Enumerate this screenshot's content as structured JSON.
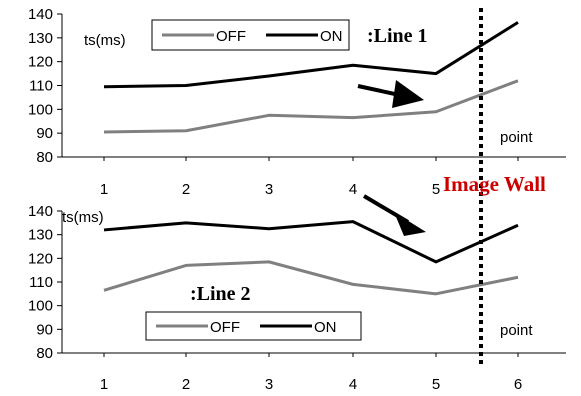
{
  "chart_data": [
    {
      "type": "line",
      "panel": "top",
      "label": ":Line 1",
      "ylabel": "ts(ms)",
      "xlabel": "point",
      "x": [
        1,
        2,
        3,
        4,
        5,
        6
      ],
      "x_tick_labels": [
        "1",
        "2",
        "3",
        "4",
        "5",
        ""
      ],
      "ylim": [
        80,
        140
      ],
      "y_ticks": [
        80,
        90,
        100,
        110,
        120,
        130,
        140
      ],
      "legend_placement": "top-center",
      "series": [
        {
          "name": "OFF",
          "color": "#808080",
          "values": [
            90.5,
            91,
            97.5,
            96.5,
            99,
            112
          ]
        },
        {
          "name": "ON",
          "color": "#000000",
          "values": [
            109.5,
            110,
            114,
            118.5,
            115,
            136.5
          ]
        }
      ]
    },
    {
      "type": "line",
      "panel": "bottom",
      "label": ":Line 2",
      "ylabel": "ts(ms)",
      "xlabel": "point",
      "x": [
        1,
        2,
        3,
        4,
        5,
        6
      ],
      "x_tick_labels": [
        "1",
        "2",
        "3",
        "4",
        "5",
        "6"
      ],
      "ylim": [
        80,
        140
      ],
      "y_ticks": [
        80,
        90,
        100,
        110,
        120,
        130,
        140
      ],
      "legend_placement": "bottom-center",
      "series": [
        {
          "name": "OFF",
          "color": "#808080",
          "values": [
            106.5,
            117,
            118.5,
            109,
            105,
            112
          ]
        },
        {
          "name": "ON",
          "color": "#000000",
          "values": [
            132,
            135,
            132.5,
            135.5,
            118.5,
            134
          ]
        }
      ]
    }
  ],
  "annotations": {
    "wall_label": "Image Wall",
    "wall_label_color": "#cc0000",
    "wall_position_x": 5.5
  }
}
